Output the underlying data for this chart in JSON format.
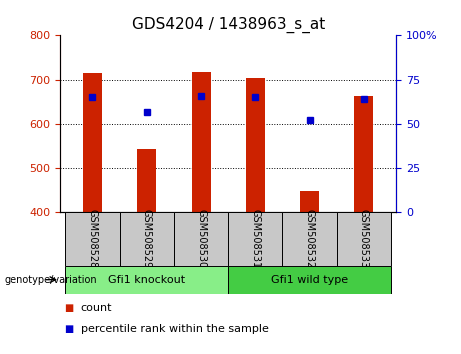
{
  "title": "GDS4204 / 1438963_s_at",
  "samples": [
    "GSM508528",
    "GSM508529",
    "GSM508530",
    "GSM508531",
    "GSM508532",
    "GSM508533"
  ],
  "bar_values": [
    715,
    543,
    718,
    703,
    448,
    663
  ],
  "bar_bottom": 400,
  "bar_color": "#cc2200",
  "percentile_values": [
    65,
    57,
    66,
    65,
    52,
    64
  ],
  "percentile_color": "#0000cc",
  "left_ylim": [
    400,
    800
  ],
  "left_yticks": [
    400,
    500,
    600,
    700,
    800
  ],
  "right_ylim": [
    0,
    100
  ],
  "right_yticks": [
    0,
    25,
    50,
    75,
    100
  ],
  "right_yticklabels": [
    "0",
    "25",
    "50",
    "75",
    "100%"
  ],
  "groups": [
    {
      "label": "Gfi1 knockout",
      "indices": [
        0,
        1,
        2
      ],
      "color": "#88ee88"
    },
    {
      "label": "Gfi1 wild type",
      "indices": [
        3,
        4,
        5
      ],
      "color": "#44cc44"
    }
  ],
  "group_row_color": "#c8c8c8",
  "genotype_label": "genotype/variation",
  "legend_count_label": "count",
  "legend_percentile_label": "percentile rank within the sample",
  "title_fontsize": 11,
  "tick_fontsize": 8,
  "bar_width": 0.35,
  "grid_lines": [
    500,
    600,
    700
  ],
  "left_axis_color": "#cc2200",
  "right_axis_color": "#0000cc"
}
